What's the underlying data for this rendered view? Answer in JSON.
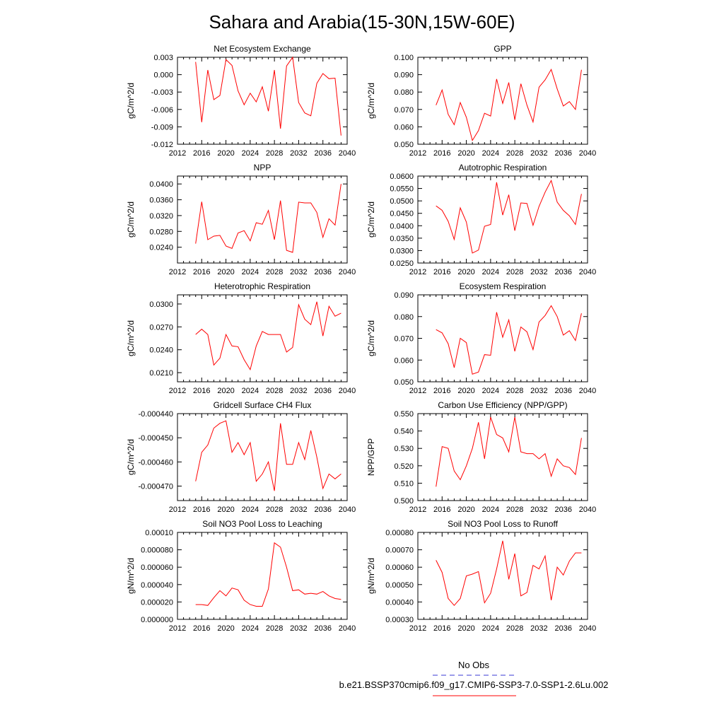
{
  "title": "Sahara and Arabia(15-30N,15W-60E)",
  "legend": {
    "obs_label": "No Obs",
    "obs_color": "#3a3ad6",
    "model_label": "b.e21.BSSP370cmip6.f09_g17.CMIP6-SSP3-7.0-SSP1-2.6Lu.002",
    "model_color": "#ff0000"
  },
  "chart_data": [
    {
      "type": "line",
      "title": "Net Ecosystem Exchange",
      "ylabel": "gC/m^2/d",
      "xlim": [
        2012,
        2040
      ],
      "xticks": [
        "2012",
        "2016",
        "2020",
        "2024",
        "2028",
        "2032",
        "2036",
        "2040"
      ],
      "ylim": [
        -0.012,
        0.003
      ],
      "yticks": [
        "-0.012",
        "-0.009",
        "-0.006",
        "-0.003",
        "0.000",
        "0.003"
      ],
      "x": [
        2015,
        2016,
        2017,
        2018,
        2019,
        2020,
        2021,
        2022,
        2023,
        2024,
        2025,
        2026,
        2027,
        2028,
        2029,
        2030,
        2031,
        2032,
        2033,
        2034,
        2035,
        2036,
        2037,
        2038,
        2039
      ],
      "series": [
        {
          "values": [
            0.0022,
            -0.0082,
            0.0008,
            -0.0043,
            -0.0036,
            0.0026,
            0.0016,
            -0.0028,
            -0.0052,
            -0.0032,
            -0.0047,
            -0.0021,
            -0.0063,
            0.0008,
            -0.0093,
            0.0015,
            0.003,
            -0.0048,
            -0.0066,
            -0.0071,
            -0.0015,
            0.0002,
            -0.0007,
            -0.0006,
            -0.0105
          ]
        }
      ]
    },
    {
      "type": "line",
      "title": "GPP",
      "ylabel": "gC/m^2/d",
      "xlim": [
        2012,
        2040
      ],
      "xticks": [
        "2012",
        "2016",
        "2020",
        "2024",
        "2028",
        "2032",
        "2036",
        "2040"
      ],
      "ylim": [
        0.05,
        0.1
      ],
      "yticks": [
        "0.050",
        "0.060",
        "0.070",
        "0.080",
        "0.090",
        "0.100"
      ],
      "x": [
        2015,
        2016,
        2017,
        2018,
        2019,
        2020,
        2021,
        2022,
        2023,
        2024,
        2025,
        2026,
        2027,
        2028,
        2029,
        2030,
        2031,
        2032,
        2033,
        2034,
        2035,
        2036,
        2037,
        2038,
        2039
      ],
      "series": [
        {
          "values": [
            0.0725,
            0.0812,
            0.0672,
            0.0612,
            0.074,
            0.0655,
            0.0522,
            0.0578,
            0.0678,
            0.0662,
            0.0875,
            0.0735,
            0.0855,
            0.064,
            0.0848,
            0.0725,
            0.0628,
            0.0828,
            0.087,
            0.093,
            0.0818,
            0.072,
            0.0745,
            0.07,
            0.0928
          ]
        }
      ]
    },
    {
      "type": "line",
      "title": "NPP",
      "ylabel": "gC/m^2/d",
      "xlim": [
        2012,
        2040
      ],
      "xticks": [
        "2012",
        "2016",
        "2020",
        "2024",
        "2028",
        "2032",
        "2036",
        "2040"
      ],
      "ylim": [
        0.02,
        0.042
      ],
      "yticks": [
        "0.0240",
        "0.0280",
        "0.0320",
        "0.0360",
        "0.0400"
      ],
      "x": [
        2015,
        2016,
        2017,
        2018,
        2019,
        2020,
        2021,
        2022,
        2023,
        2024,
        2025,
        2026,
        2027,
        2028,
        2029,
        2030,
        2031,
        2032,
        2033,
        2034,
        2035,
        2036,
        2037,
        2038,
        2039
      ],
      "series": [
        {
          "values": [
            0.0249,
            0.0355,
            0.0259,
            0.0268,
            0.027,
            0.0243,
            0.0237,
            0.0276,
            0.0282,
            0.0256,
            0.0302,
            0.0298,
            0.0333,
            0.0259,
            0.0358,
            0.0232,
            0.0227,
            0.0354,
            0.0352,
            0.0352,
            0.0328,
            0.0265,
            0.0312,
            0.0296,
            0.04
          ]
        }
      ]
    },
    {
      "type": "line",
      "title": "Autotrophic Respiration",
      "ylabel": "gC/m^2/d",
      "xlim": [
        2012,
        2040
      ],
      "xticks": [
        "2012",
        "2016",
        "2020",
        "2024",
        "2028",
        "2032",
        "2036",
        "2040"
      ],
      "ylim": [
        0.025,
        0.06
      ],
      "yticks": [
        "0.0250",
        "0.0300",
        "0.0350",
        "0.0400",
        "0.0450",
        "0.0500",
        "0.0550",
        "0.0600"
      ],
      "x": [
        2015,
        2016,
        2017,
        2018,
        2019,
        2020,
        2021,
        2022,
        2023,
        2024,
        2025,
        2026,
        2027,
        2028,
        2029,
        2030,
        2031,
        2032,
        2033,
        2034,
        2035,
        2036,
        2037,
        2038,
        2039
      ],
      "series": [
        {
          "values": [
            0.048,
            0.0462,
            0.0418,
            0.0345,
            0.0472,
            0.0415,
            0.029,
            0.0302,
            0.0398,
            0.0405,
            0.0575,
            0.0443,
            0.0525,
            0.038,
            0.0492,
            0.049,
            0.0402,
            0.0478,
            0.0535,
            0.0582,
            0.0495,
            0.0462,
            0.044,
            0.0405,
            0.0528
          ]
        }
      ]
    },
    {
      "type": "line",
      "title": "Heterotrophic Respiration",
      "ylabel": "gC/m^2/d",
      "xlim": [
        2012,
        2040
      ],
      "xticks": [
        "2012",
        "2016",
        "2020",
        "2024",
        "2028",
        "2032",
        "2036",
        "2040"
      ],
      "ylim": [
        0.0198,
        0.0312
      ],
      "yticks": [
        "0.0210",
        "0.0240",
        "0.0270",
        "0.0300"
      ],
      "x": [
        2015,
        2016,
        2017,
        2018,
        2019,
        2020,
        2021,
        2022,
        2023,
        2024,
        2025,
        2026,
        2027,
        2028,
        2029,
        2030,
        2031,
        2032,
        2033,
        2034,
        2035,
        2036,
        2037,
        2038,
        2039
      ],
      "series": [
        {
          "values": [
            0.026,
            0.0267,
            0.026,
            0.022,
            0.0229,
            0.026,
            0.0245,
            0.0244,
            0.0227,
            0.0214,
            0.0245,
            0.0264,
            0.026,
            0.026,
            0.026,
            0.0237,
            0.0243,
            0.0299,
            0.028,
            0.0273,
            0.0303,
            0.0258,
            0.0297,
            0.0284,
            0.0288
          ]
        }
      ]
    },
    {
      "type": "line",
      "title": "Ecosystem Respiration",
      "ylabel": "gC/m^2/d",
      "xlim": [
        2012,
        2040
      ],
      "xticks": [
        "2012",
        "2016",
        "2020",
        "2024",
        "2028",
        "2032",
        "2036",
        "2040"
      ],
      "ylim": [
        0.05,
        0.09
      ],
      "yticks": [
        "0.050",
        "0.060",
        "0.070",
        "0.080",
        "0.090"
      ],
      "x": [
        2015,
        2016,
        2017,
        2018,
        2019,
        2020,
        2021,
        2022,
        2023,
        2024,
        2025,
        2026,
        2027,
        2028,
        2029,
        2030,
        2031,
        2032,
        2033,
        2034,
        2035,
        2036,
        2037,
        2038,
        2039
      ],
      "series": [
        {
          "values": [
            0.074,
            0.0725,
            0.0675,
            0.0565,
            0.07,
            0.068,
            0.0535,
            0.0545,
            0.0625,
            0.0622,
            0.082,
            0.0705,
            0.0785,
            0.064,
            0.0752,
            0.073,
            0.0648,
            0.0775,
            0.0805,
            0.085,
            0.08,
            0.0715,
            0.0735,
            0.069,
            0.0815
          ]
        }
      ]
    },
    {
      "type": "line",
      "title": "Gridcell Surface CH4 Flux",
      "ylabel": "gC/m^2/d",
      "xlim": [
        2012,
        2040
      ],
      "xticks": [
        "2012",
        "2016",
        "2020",
        "2024",
        "2028",
        "2032",
        "2036",
        "2040"
      ],
      "ylim": [
        -0.000476,
        -0.00044
      ],
      "yticks": [
        "-0.000470",
        "-0.000460",
        "-0.000450",
        "-0.000440"
      ],
      "x": [
        2015,
        2016,
        2017,
        2018,
        2019,
        2020,
        2021,
        2022,
        2023,
        2024,
        2025,
        2026,
        2027,
        2028,
        2029,
        2030,
        2031,
        2032,
        2033,
        2034,
        2035,
        2036,
        2037,
        2038,
        2039
      ],
      "series": [
        {
          "values": [
            -0.000468,
            -0.000456,
            -0.000453,
            -0.000446,
            -0.000444,
            -0.000443,
            -0.000456,
            -0.000452,
            -0.000457,
            -0.000452,
            -0.000468,
            -0.000465,
            -0.00046,
            -0.000472,
            -0.000444,
            -0.000461,
            -0.000461,
            -0.000452,
            -0.000459,
            -0.000447,
            -0.000458,
            -0.000471,
            -0.000465,
            -0.000467,
            -0.000465
          ]
        }
      ]
    },
    {
      "type": "line",
      "title": "Carbon Use Efficiency (NPP/GPP)",
      "ylabel": "NPP/GPP",
      "xlim": [
        2012,
        2040
      ],
      "xticks": [
        "2012",
        "2016",
        "2020",
        "2024",
        "2028",
        "2032",
        "2036",
        "2040"
      ],
      "ylim": [
        0.5,
        0.55
      ],
      "yticks": [
        "0.500",
        "0.510",
        "0.520",
        "0.530",
        "0.540",
        "0.550"
      ],
      "x": [
        2015,
        2016,
        2017,
        2018,
        2019,
        2020,
        2021,
        2022,
        2023,
        2024,
        2025,
        2026,
        2027,
        2028,
        2029,
        2030,
        2031,
        2032,
        2033,
        2034,
        2035,
        2036,
        2037,
        2038,
        2039
      ],
      "series": [
        {
          "values": [
            0.508,
            0.531,
            0.53,
            0.517,
            0.512,
            0.52,
            0.53,
            0.545,
            0.524,
            0.548,
            0.538,
            0.536,
            0.528,
            0.548,
            0.528,
            0.527,
            0.527,
            0.524,
            0.527,
            0.514,
            0.524,
            0.52,
            0.519,
            0.515,
            0.536
          ]
        }
      ]
    },
    {
      "type": "line",
      "title": "Soil NO3 Pool Loss to Leaching",
      "ylabel": "gN/m^2/d",
      "xlim": [
        2012,
        2040
      ],
      "xticks": [
        "2012",
        "2016",
        "2020",
        "2024",
        "2028",
        "2032",
        "2036",
        "2040"
      ],
      "ylim": [
        0.0,
        0.0001
      ],
      "yticks": [
        "0.000000",
        "0.000020",
        "0.000040",
        "0.000060",
        "0.000080",
        "0.00010"
      ],
      "x": [
        2015,
        2016,
        2017,
        2018,
        2019,
        2020,
        2021,
        2022,
        2023,
        2024,
        2025,
        2026,
        2027,
        2028,
        2029,
        2030,
        2031,
        2032,
        2033,
        2034,
        2035,
        2036,
        2037,
        2038,
        2039
      ],
      "series": [
        {
          "values": [
            1.7e-05,
            1.7e-05,
            1.6e-05,
            2.5e-05,
            3.3e-05,
            2.7e-05,
            3.6e-05,
            3.4e-05,
            2.2e-05,
            1.7e-05,
            1.5e-05,
            1.5e-05,
            3.5e-05,
            8.8e-05,
            8.3e-05,
            6e-05,
            3.3e-05,
            3.4e-05,
            2.9e-05,
            3e-05,
            2.9e-05,
            3.2e-05,
            2.7e-05,
            2.4e-05,
            2.3e-05
          ]
        }
      ]
    },
    {
      "type": "line",
      "title": "Soil NO3 Pool Loss to Runoff",
      "ylabel": "gN/m^2/d",
      "xlim": [
        2012,
        2040
      ],
      "xticks": [
        "2012",
        "2016",
        "2020",
        "2024",
        "2028",
        "2032",
        "2036",
        "2040"
      ],
      "ylim": [
        0.0003,
        0.0008
      ],
      "yticks": [
        "0.00030",
        "0.00040",
        "0.00050",
        "0.00060",
        "0.00070",
        "0.00080"
      ],
      "x": [
        2015,
        2016,
        2017,
        2018,
        2019,
        2020,
        2021,
        2022,
        2023,
        2024,
        2025,
        2026,
        2027,
        2028,
        2029,
        2030,
        2031,
        2032,
        2033,
        2034,
        2035,
        2036,
        2037,
        2038,
        2039
      ],
      "series": [
        {
          "values": [
            0.00064,
            0.00057,
            0.00042,
            0.00038,
            0.00042,
            0.00055,
            0.00056,
            0.000575,
            0.000395,
            0.00045,
            0.00059,
            0.000752,
            0.00053,
            0.000678,
            0.000435,
            0.000455,
            0.00061,
            0.00059,
            0.000665,
            0.00041,
            0.0006,
            0.000555,
            0.000635,
            0.000682,
            0.000682
          ]
        }
      ]
    }
  ]
}
